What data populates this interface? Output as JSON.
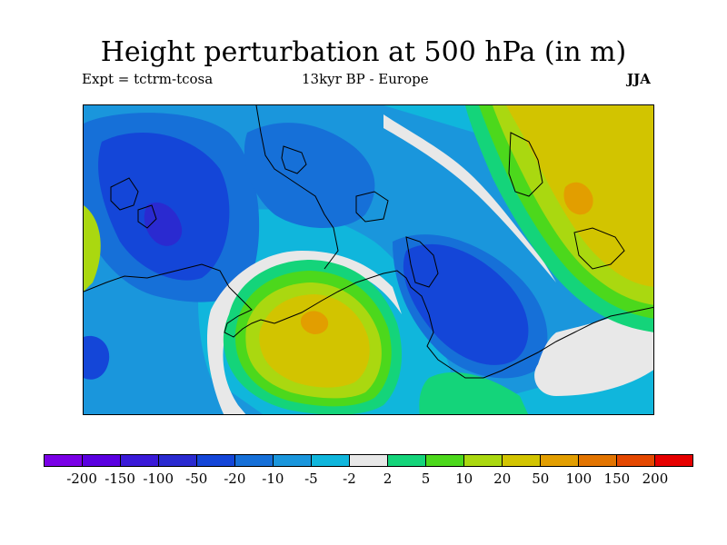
{
  "title": "Height perturbation at 500 hPa (in m)",
  "subtitle_left": "Expt = tctrm-tcosa",
  "subtitle_center": "13kyr BP - Europe",
  "subtitle_right": "JJA",
  "colorbar": {
    "colors": [
      "#7a00e6",
      "#5a00e0",
      "#3a1ad8",
      "#2a2ad0",
      "#1446d8",
      "#1670d8",
      "#1a96dc",
      "#10b6dc",
      "#e8e8e8",
      "#14d47a",
      "#4cd81c",
      "#aad810",
      "#d2c400",
      "#e29e00",
      "#e27400",
      "#e44800",
      "#e60000"
    ],
    "labels": [
      "-200",
      "-150",
      "-100",
      "-50",
      "-20",
      "-10",
      "-5",
      "-2",
      "2",
      "5",
      "10",
      "20",
      "50",
      "100",
      "150",
      "200"
    ]
  },
  "map": {
    "field": "Height perturbation (m)",
    "region": "Europe"
  }
}
